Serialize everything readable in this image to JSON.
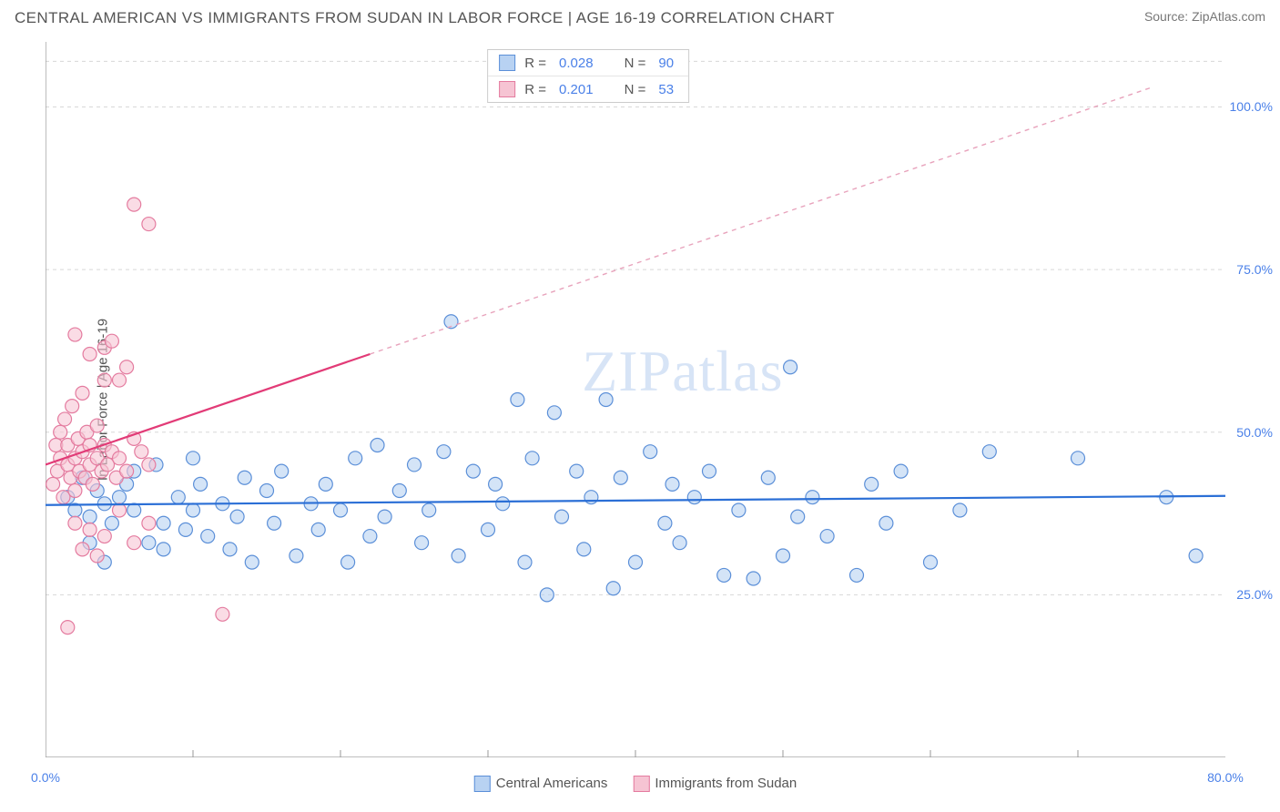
{
  "title": "CENTRAL AMERICAN VS IMMIGRANTS FROM SUDAN IN LABOR FORCE | AGE 16-19 CORRELATION CHART",
  "source": "Source: ZipAtlas.com",
  "watermark": "ZIPatlas",
  "chart": {
    "type": "scatter",
    "y_axis_label": "In Labor Force | Age 16-19",
    "x_axis_label": "",
    "xlim": [
      0,
      80
    ],
    "ylim": [
      0,
      110
    ],
    "x_ticks": [
      {
        "v": 0,
        "label": "0.0%"
      },
      {
        "v": 80,
        "label": "80.0%"
      }
    ],
    "x_minor_ticks": [
      10,
      20,
      30,
      40,
      50,
      60,
      70
    ],
    "y_ticks": [
      {
        "v": 25,
        "label": "25.0%"
      },
      {
        "v": 50,
        "label": "50.0%"
      },
      {
        "v": 75,
        "label": "75.0%"
      },
      {
        "v": 100,
        "label": "100.0%"
      }
    ],
    "grid_color": "#d8d8d8",
    "grid_dash": "4,4",
    "axis_color": "#999999",
    "background_color": "#ffffff",
    "marker_radius": 7.5,
    "marker_stroke_width": 1.2,
    "series": [
      {
        "name": "Central Americans",
        "fill": "#b8d2f2",
        "stroke": "#5b8fd8",
        "fill_opacity": 0.6,
        "trend": {
          "x1": 0,
          "y1": 38.8,
          "x2": 80,
          "y2": 40.2,
          "stroke": "#2b6fd6",
          "width": 2.2,
          "dash": "none"
        },
        "points": [
          [
            1.5,
            40
          ],
          [
            2,
            38
          ],
          [
            2.5,
            43
          ],
          [
            3,
            37
          ],
          [
            3.5,
            41
          ],
          [
            4,
            39
          ],
          [
            4.5,
            36
          ],
          [
            5,
            40
          ],
          [
            5.5,
            42
          ],
          [
            6,
            38
          ],
          [
            7,
            33
          ],
          [
            7.5,
            45
          ],
          [
            8,
            36
          ],
          [
            9,
            40
          ],
          [
            9.5,
            35
          ],
          [
            10,
            38
          ],
          [
            10.5,
            42
          ],
          [
            11,
            34
          ],
          [
            12,
            39
          ],
          [
            12.5,
            32
          ],
          [
            13,
            37
          ],
          [
            13.5,
            43
          ],
          [
            14,
            30
          ],
          [
            15,
            41
          ],
          [
            15.5,
            36
          ],
          [
            16,
            44
          ],
          [
            17,
            31
          ],
          [
            18,
            39
          ],
          [
            18.5,
            35
          ],
          [
            19,
            42
          ],
          [
            20,
            38
          ],
          [
            20.5,
            30
          ],
          [
            21,
            46
          ],
          [
            22,
            34
          ],
          [
            22.5,
            48
          ],
          [
            23,
            37
          ],
          [
            24,
            41
          ],
          [
            25,
            45
          ],
          [
            25.5,
            33
          ],
          [
            26,
            38
          ],
          [
            27,
            47
          ],
          [
            27.5,
            67
          ],
          [
            28,
            31
          ],
          [
            29,
            44
          ],
          [
            30,
            35
          ],
          [
            30.5,
            42
          ],
          [
            31,
            39
          ],
          [
            32,
            55
          ],
          [
            32.5,
            30
          ],
          [
            33,
            46
          ],
          [
            34,
            25
          ],
          [
            34.5,
            53
          ],
          [
            35,
            37
          ],
          [
            36,
            44
          ],
          [
            36.5,
            32
          ],
          [
            37,
            40
          ],
          [
            38,
            55
          ],
          [
            38.5,
            26
          ],
          [
            39,
            43
          ],
          [
            40,
            30
          ],
          [
            41,
            47
          ],
          [
            42,
            36
          ],
          [
            42.5,
            42
          ],
          [
            43,
            33
          ],
          [
            44,
            40
          ],
          [
            45,
            44
          ],
          [
            46,
            28
          ],
          [
            47,
            38
          ],
          [
            48,
            27.5
          ],
          [
            49,
            43
          ],
          [
            50,
            31
          ],
          [
            50.5,
            60
          ],
          [
            51,
            37
          ],
          [
            52,
            40
          ],
          [
            53,
            34
          ],
          [
            55,
            28
          ],
          [
            56,
            42
          ],
          [
            57,
            36
          ],
          [
            58,
            44
          ],
          [
            60,
            30
          ],
          [
            62,
            38
          ],
          [
            64,
            47
          ],
          [
            70,
            46
          ],
          [
            76,
            40
          ],
          [
            78,
            31
          ],
          [
            3,
            33
          ],
          [
            4,
            30
          ],
          [
            6,
            44
          ],
          [
            8,
            32
          ],
          [
            10,
            46
          ]
        ]
      },
      {
        "name": "Immigrants from Sudan",
        "fill": "#f6c4d3",
        "stroke": "#e47b9f",
        "fill_opacity": 0.6,
        "trend": {
          "x1": 0,
          "y1": 45,
          "x2": 22,
          "y2": 62,
          "stroke": "#e23b77",
          "width": 2.2,
          "dash": "none"
        },
        "trend_ext": {
          "x1": 22,
          "y1": 62,
          "x2": 75,
          "y2": 103,
          "stroke": "#e8a3bc",
          "width": 1.4,
          "dash": "5,5"
        },
        "points": [
          [
            0.5,
            42
          ],
          [
            0.7,
            48
          ],
          [
            0.8,
            44
          ],
          [
            1,
            46
          ],
          [
            1,
            50
          ],
          [
            1.2,
            40
          ],
          [
            1.3,
            52
          ],
          [
            1.5,
            45
          ],
          [
            1.5,
            48
          ],
          [
            1.7,
            43
          ],
          [
            1.8,
            54
          ],
          [
            2,
            46
          ],
          [
            2,
            41
          ],
          [
            2.2,
            49
          ],
          [
            2.3,
            44
          ],
          [
            2.5,
            47
          ],
          [
            2.5,
            56
          ],
          [
            2.7,
            43
          ],
          [
            2.8,
            50
          ],
          [
            3,
            45
          ],
          [
            3,
            48
          ],
          [
            3.2,
            42
          ],
          [
            3.5,
            46
          ],
          [
            3.5,
            51
          ],
          [
            3.8,
            44
          ],
          [
            4,
            48
          ],
          [
            4,
            63
          ],
          [
            4.2,
            45
          ],
          [
            4.5,
            47
          ],
          [
            4.5,
            64
          ],
          [
            4.8,
            43
          ],
          [
            5,
            58
          ],
          [
            5,
            46
          ],
          [
            5.5,
            60
          ],
          [
            5.5,
            44
          ],
          [
            6,
            49
          ],
          [
            6,
            85
          ],
          [
            6.5,
            47
          ],
          [
            7,
            82
          ],
          [
            7,
            45
          ],
          [
            1.5,
            20
          ],
          [
            2,
            36
          ],
          [
            2.5,
            32
          ],
          [
            3,
            35
          ],
          [
            3.5,
            31
          ],
          [
            4,
            34
          ],
          [
            5,
            38
          ],
          [
            6,
            33
          ],
          [
            7,
            36
          ],
          [
            12,
            22
          ],
          [
            2,
            65
          ],
          [
            3,
            62
          ],
          [
            4,
            58
          ]
        ]
      }
    ],
    "stats_box": {
      "rows": [
        {
          "swatch_fill": "#b8d2f2",
          "swatch_stroke": "#5b8fd8",
          "r_label": "R =",
          "r_val": "0.028",
          "n_label": "N =",
          "n_val": "90"
        },
        {
          "swatch_fill": "#f6c4d3",
          "swatch_stroke": "#e47b9f",
          "r_label": "R =",
          "r_val": "0.201",
          "n_label": "N =",
          "n_val": "53"
        }
      ]
    },
    "legend": [
      {
        "swatch_fill": "#b8d2f2",
        "swatch_stroke": "#5b8fd8",
        "label": "Central Americans"
      },
      {
        "swatch_fill": "#f6c4d3",
        "swatch_stroke": "#e47b9f",
        "label": "Immigrants from Sudan"
      }
    ]
  }
}
